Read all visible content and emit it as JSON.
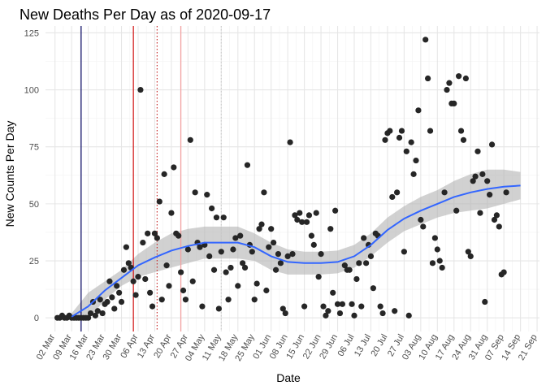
{
  "chart_data": {
    "type": "scatter",
    "title": "New Deaths Per Day as of 2020-09-17",
    "xlabel": "Date",
    "ylabel": "New Counts Per Day",
    "x_is_date": true,
    "xlim": [
      "2020-02-27",
      "2020-09-22"
    ],
    "ylim": [
      -6,
      128
    ],
    "grid": true,
    "yticks": [
      0,
      25,
      50,
      75,
      100,
      125
    ],
    "xticks": [
      {
        "date": "2020-03-02",
        "label": "02 Mar"
      },
      {
        "date": "2020-03-09",
        "label": "09 Mar"
      },
      {
        "date": "2020-03-16",
        "label": "16 Mar"
      },
      {
        "date": "2020-03-23",
        "label": "23 Mar"
      },
      {
        "date": "2020-03-30",
        "label": "30 Mar"
      },
      {
        "date": "2020-04-06",
        "label": "06 Apr"
      },
      {
        "date": "2020-04-13",
        "label": "13 Apr"
      },
      {
        "date": "2020-04-20",
        "label": "20 Apr"
      },
      {
        "date": "2020-04-27",
        "label": "27 Apr"
      },
      {
        "date": "2020-05-04",
        "label": "04 May"
      },
      {
        "date": "2020-05-11",
        "label": "11 May"
      },
      {
        "date": "2020-05-18",
        "label": "18 May"
      },
      {
        "date": "2020-05-25",
        "label": "25 May"
      },
      {
        "date": "2020-06-01",
        "label": "01 Jun"
      },
      {
        "date": "2020-06-08",
        "label": "08 Jun"
      },
      {
        "date": "2020-06-15",
        "label": "15 Jun"
      },
      {
        "date": "2020-06-22",
        "label": "22 Jun"
      },
      {
        "date": "2020-06-29",
        "label": "29 Jun"
      },
      {
        "date": "2020-07-06",
        "label": "06 Jul"
      },
      {
        "date": "2020-07-13",
        "label": "13 Jul"
      },
      {
        "date": "2020-07-20",
        "label": "20 Jul"
      },
      {
        "date": "2020-07-27",
        "label": "27 Jul"
      },
      {
        "date": "2020-08-03",
        "label": "03 Aug"
      },
      {
        "date": "2020-08-10",
        "label": "10 Aug"
      },
      {
        "date": "2020-08-17",
        "label": "17 Aug"
      },
      {
        "date": "2020-08-24",
        "label": "24 Aug"
      },
      {
        "date": "2020-08-31",
        "label": "31 Aug"
      },
      {
        "date": "2020-09-07",
        "label": "07 Sep"
      },
      {
        "date": "2020-09-14",
        "label": "14 Sep"
      },
      {
        "date": "2020-09-21",
        "label": "21 Sep"
      }
    ],
    "vlines": [
      {
        "date": "2020-03-13",
        "color": "#00005f",
        "style": "solid"
      },
      {
        "date": "2020-04-04",
        "color": "#d01010",
        "style": "solid"
      },
      {
        "date": "2020-04-14",
        "color": "#c83030",
        "style": "dotted"
      },
      {
        "date": "2020-04-24",
        "color": "#f4a0a0",
        "style": "solid"
      },
      {
        "date": "2020-05-11",
        "color": "#cccccc",
        "style": "dotted"
      }
    ],
    "points": [
      [
        "2020-03-03",
        0
      ],
      [
        "2020-03-04",
        0
      ],
      [
        "2020-03-05",
        1
      ],
      [
        "2020-03-06",
        0
      ],
      [
        "2020-03-07",
        0
      ],
      [
        "2020-03-08",
        1
      ],
      [
        "2020-03-09",
        0
      ],
      [
        "2020-03-10",
        0
      ],
      [
        "2020-03-11",
        0
      ],
      [
        "2020-03-12",
        0
      ],
      [
        "2020-03-13",
        0
      ],
      [
        "2020-03-14",
        0
      ],
      [
        "2020-03-15",
        0
      ],
      [
        "2020-03-16",
        0
      ],
      [
        "2020-03-17",
        2
      ],
      [
        "2020-03-18",
        7
      ],
      [
        "2020-03-19",
        1
      ],
      [
        "2020-03-20",
        3
      ],
      [
        "2020-03-21",
        8
      ],
      [
        "2020-03-22",
        2
      ],
      [
        "2020-03-23",
        6
      ],
      [
        "2020-03-24",
        7
      ],
      [
        "2020-03-25",
        16
      ],
      [
        "2020-03-26",
        9
      ],
      [
        "2020-03-27",
        4
      ],
      [
        "2020-03-28",
        14
      ],
      [
        "2020-03-29",
        11
      ],
      [
        "2020-03-30",
        7
      ],
      [
        "2020-03-31",
        21
      ],
      [
        "2020-04-01",
        31
      ],
      [
        "2020-04-02",
        24
      ],
      [
        "2020-04-03",
        22
      ],
      [
        "2020-04-04",
        16
      ],
      [
        "2020-04-05",
        10
      ],
      [
        "2020-04-06",
        18
      ],
      [
        "2020-04-07",
        100
      ],
      [
        "2020-04-08",
        33
      ],
      [
        "2020-04-09",
        17
      ],
      [
        "2020-04-10",
        37
      ],
      [
        "2020-04-11",
        11
      ],
      [
        "2020-04-12",
        5
      ],
      [
        "2020-04-13",
        37
      ],
      [
        "2020-04-14",
        35
      ],
      [
        "2020-04-15",
        51
      ],
      [
        "2020-04-16",
        8
      ],
      [
        "2020-04-17",
        63
      ],
      [
        "2020-04-18",
        23
      ],
      [
        "2020-04-19",
        14
      ],
      [
        "2020-04-20",
        46
      ],
      [
        "2020-04-21",
        66
      ],
      [
        "2020-04-22",
        37
      ],
      [
        "2020-04-23",
        36
      ],
      [
        "2020-04-24",
        20
      ],
      [
        "2020-04-25",
        12
      ],
      [
        "2020-04-26",
        8
      ],
      [
        "2020-04-27",
        30
      ],
      [
        "2020-04-28",
        78
      ],
      [
        "2020-04-29",
        16
      ],
      [
        "2020-04-30",
        55
      ],
      [
        "2020-05-01",
        33
      ],
      [
        "2020-05-02",
        31
      ],
      [
        "2020-05-03",
        5
      ],
      [
        "2020-05-04",
        32
      ],
      [
        "2020-05-05",
        54
      ],
      [
        "2020-05-06",
        27
      ],
      [
        "2020-05-07",
        48
      ],
      [
        "2020-05-08",
        21
      ],
      [
        "2020-05-09",
        44
      ],
      [
        "2020-05-10",
        4
      ],
      [
        "2020-05-11",
        29
      ],
      [
        "2020-05-12",
        44
      ],
      [
        "2020-05-13",
        20
      ],
      [
        "2020-05-14",
        8
      ],
      [
        "2020-05-15",
        22
      ],
      [
        "2020-05-16",
        30
      ],
      [
        "2020-05-17",
        35
      ],
      [
        "2020-05-18",
        14
      ],
      [
        "2020-05-19",
        36
      ],
      [
        "2020-05-20",
        24
      ],
      [
        "2020-05-21",
        22
      ],
      [
        "2020-05-22",
        67
      ],
      [
        "2020-05-23",
        32
      ],
      [
        "2020-05-24",
        29
      ],
      [
        "2020-05-25",
        8
      ],
      [
        "2020-05-26",
        15
      ],
      [
        "2020-05-27",
        39
      ],
      [
        "2020-05-28",
        41
      ],
      [
        "2020-05-29",
        55
      ],
      [
        "2020-05-30",
        12
      ],
      [
        "2020-05-31",
        31
      ],
      [
        "2020-06-01",
        39
      ],
      [
        "2020-06-02",
        33
      ],
      [
        "2020-06-03",
        21
      ],
      [
        "2020-06-04",
        28
      ],
      [
        "2020-06-05",
        24
      ],
      [
        "2020-06-06",
        4
      ],
      [
        "2020-06-07",
        2
      ],
      [
        "2020-06-08",
        27
      ],
      [
        "2020-06-09",
        77
      ],
      [
        "2020-06-10",
        28
      ],
      [
        "2020-06-11",
        45
      ],
      [
        "2020-06-12",
        43
      ],
      [
        "2020-06-13",
        46
      ],
      [
        "2020-06-14",
        42
      ],
      [
        "2020-06-15",
        5
      ],
      [
        "2020-06-16",
        42
      ],
      [
        "2020-06-17",
        45
      ],
      [
        "2020-06-18",
        36
      ],
      [
        "2020-06-19",
        32
      ],
      [
        "2020-06-20",
        46
      ],
      [
        "2020-06-21",
        18
      ],
      [
        "2020-06-22",
        28
      ],
      [
        "2020-06-23",
        5
      ],
      [
        "2020-06-24",
        1
      ],
      [
        "2020-06-25",
        3
      ],
      [
        "2020-06-26",
        39
      ],
      [
        "2020-06-27",
        11
      ],
      [
        "2020-06-28",
        47
      ],
      [
        "2020-06-29",
        6
      ],
      [
        "2020-06-30",
        2
      ],
      [
        "2020-07-01",
        6
      ],
      [
        "2020-07-02",
        23
      ],
      [
        "2020-07-03",
        21
      ],
      [
        "2020-07-04",
        21
      ],
      [
        "2020-07-05",
        6
      ],
      [
        "2020-07-06",
        1
      ],
      [
        "2020-07-07",
        17
      ],
      [
        "2020-07-08",
        24
      ],
      [
        "2020-07-09",
        5
      ],
      [
        "2020-07-10",
        35
      ],
      [
        "2020-07-11",
        24
      ],
      [
        "2020-07-12",
        32
      ],
      [
        "2020-07-13",
        27
      ],
      [
        "2020-07-14",
        13
      ],
      [
        "2020-07-15",
        37
      ],
      [
        "2020-07-16",
        36
      ],
      [
        "2020-07-17",
        5
      ],
      [
        "2020-07-18",
        2
      ],
      [
        "2020-07-19",
        78
      ],
      [
        "2020-07-20",
        81
      ],
      [
        "2020-07-21",
        82
      ],
      [
        "2020-07-22",
        53
      ],
      [
        "2020-07-23",
        3
      ],
      [
        "2020-07-24",
        55
      ],
      [
        "2020-07-25",
        79
      ],
      [
        "2020-07-26",
        82
      ],
      [
        "2020-07-27",
        29
      ],
      [
        "2020-07-28",
        73
      ],
      [
        "2020-07-29",
        1
      ],
      [
        "2020-07-30",
        77
      ],
      [
        "2020-07-31",
        63
      ],
      [
        "2020-08-01",
        69
      ],
      [
        "2020-08-02",
        91
      ],
      [
        "2020-08-03",
        43
      ],
      [
        "2020-08-04",
        40
      ],
      [
        "2020-08-05",
        122
      ],
      [
        "2020-08-06",
        105
      ],
      [
        "2020-08-07",
        82
      ],
      [
        "2020-08-08",
        24
      ],
      [
        "2020-08-09",
        35
      ],
      [
        "2020-08-10",
        30
      ],
      [
        "2020-08-11",
        25
      ],
      [
        "2020-08-12",
        22
      ],
      [
        "2020-08-13",
        55
      ],
      [
        "2020-08-14",
        100
      ],
      [
        "2020-08-15",
        103
      ],
      [
        "2020-08-16",
        94
      ],
      [
        "2020-08-17",
        94
      ],
      [
        "2020-08-18",
        47
      ],
      [
        "2020-08-19",
        106
      ],
      [
        "2020-08-20",
        82
      ],
      [
        "2020-08-21",
        78
      ],
      [
        "2020-08-22",
        105
      ],
      [
        "2020-08-23",
        29
      ],
      [
        "2020-08-24",
        27
      ],
      [
        "2020-08-25",
        60
      ],
      [
        "2020-08-26",
        62
      ],
      [
        "2020-08-27",
        73
      ],
      [
        "2020-08-28",
        46
      ],
      [
        "2020-08-29",
        63
      ],
      [
        "2020-08-30",
        7
      ],
      [
        "2020-08-31",
        60
      ],
      [
        "2020-09-01",
        54
      ],
      [
        "2020-09-02",
        76
      ],
      [
        "2020-09-03",
        43
      ],
      [
        "2020-09-04",
        45
      ],
      [
        "2020-09-05",
        40
      ],
      [
        "2020-09-06",
        19
      ],
      [
        "2020-09-07",
        20
      ],
      [
        "2020-09-08",
        55
      ]
    ],
    "smooth": [
      [
        "2020-03-09",
        0.5,
        -1
      ],
      [
        "2020-03-16",
        5,
        -1
      ],
      [
        "2020-03-23",
        12,
        8
      ],
      [
        "2020-03-30",
        17.5,
        14
      ],
      [
        "2020-04-06",
        23,
        18
      ],
      [
        "2020-04-13",
        26.5,
        20
      ],
      [
        "2020-04-20",
        29.5,
        22
      ],
      [
        "2020-04-27",
        31.5,
        24
      ],
      [
        "2020-05-04",
        33,
        26
      ],
      [
        "2020-05-11",
        33,
        26
      ],
      [
        "2020-05-18",
        33,
        26
      ],
      [
        "2020-05-25",
        31,
        25
      ],
      [
        "2020-06-01",
        27,
        21
      ],
      [
        "2020-06-08",
        24.5,
        19
      ],
      [
        "2020-06-15",
        24,
        19
      ],
      [
        "2020-06-22",
        24,
        19
      ],
      [
        "2020-06-29",
        24.5,
        19.5
      ],
      [
        "2020-07-06",
        27,
        22
      ],
      [
        "2020-07-13",
        32,
        27
      ],
      [
        "2020-07-20",
        38.5,
        33
      ],
      [
        "2020-07-27",
        43.5,
        38
      ],
      [
        "2020-08-03",
        47,
        41
      ],
      [
        "2020-08-10",
        50,
        44
      ],
      [
        "2020-08-17",
        53,
        46
      ],
      [
        "2020-08-24",
        55,
        47
      ],
      [
        "2020-08-31",
        56.5,
        48
      ],
      [
        "2020-09-07",
        57.5,
        50
      ],
      [
        "2020-09-14",
        58,
        52
      ]
    ],
    "colors": {
      "points": "#262626",
      "smooth_line": "#3366ff",
      "band": "#b3b3b3",
      "grid_major": "#e6e6e6",
      "grid_minor": "#f2f2f2"
    }
  }
}
